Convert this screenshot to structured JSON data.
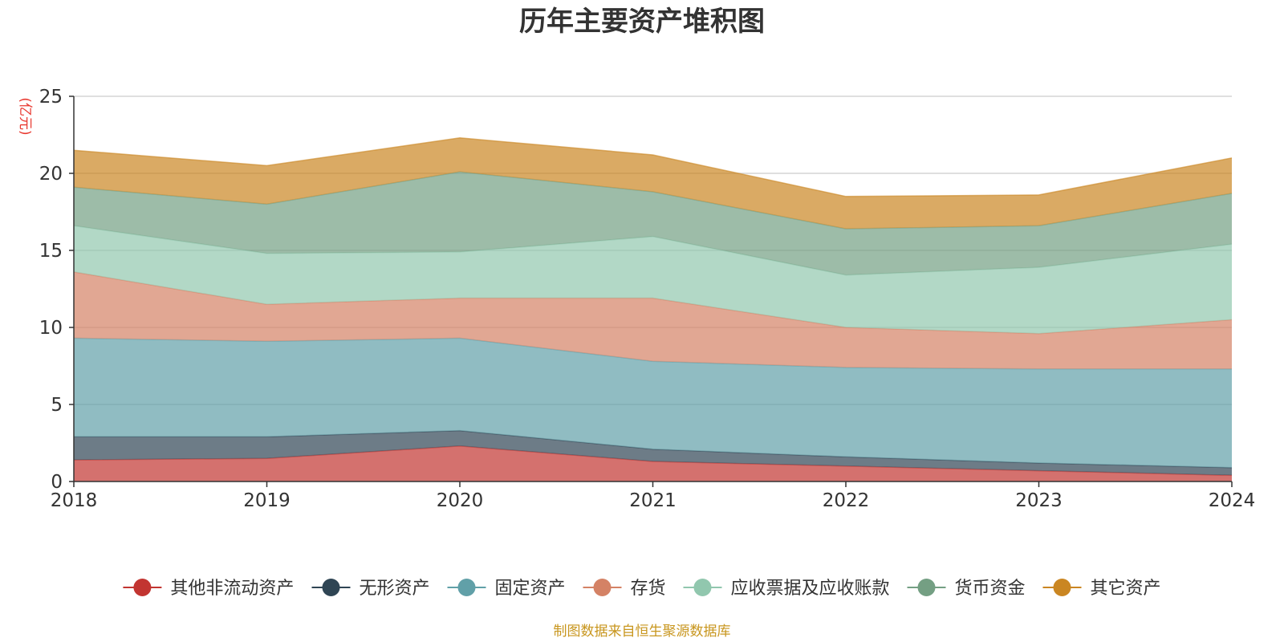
{
  "chart_data": {
    "type": "area",
    "title": "历年主要资产堆积图",
    "ylabel": "(亿元)",
    "x": [
      "2018",
      "2019",
      "2020",
      "2021",
      "2022",
      "2023",
      "2024"
    ],
    "ylim": [
      0,
      25
    ],
    "yticks": [
      "0",
      "5",
      "10",
      "15",
      "20",
      "25"
    ],
    "stacked": true,
    "grid": true,
    "legend_position": "bottom",
    "series": [
      {
        "name": "其他非流动资产",
        "color": "#c23531",
        "values": [
          1.4,
          1.5,
          2.3,
          1.3,
          1.0,
          0.7,
          0.4
        ]
      },
      {
        "name": "无形资产",
        "color": "#2f4554",
        "values": [
          1.5,
          1.4,
          1.0,
          0.8,
          0.6,
          0.5,
          0.5
        ]
      },
      {
        "name": "固定资产",
        "color": "#61a0a8",
        "values": [
          6.4,
          6.2,
          6.0,
          5.7,
          5.8,
          6.1,
          6.4
        ]
      },
      {
        "name": "存货",
        "color": "#d48265",
        "values": [
          4.3,
          2.4,
          2.6,
          4.1,
          2.6,
          2.3,
          3.2
        ]
      },
      {
        "name": "应收票据及应收账款",
        "color": "#91c7ae",
        "values": [
          3.0,
          3.3,
          3.0,
          4.0,
          3.4,
          4.3,
          4.9
        ]
      },
      {
        "name": "货币资金",
        "color": "#749f83",
        "values": [
          2.5,
          3.2,
          5.2,
          2.9,
          3.0,
          2.7,
          3.3
        ]
      },
      {
        "name": "其它资产",
        "color": "#ca8622",
        "values": [
          2.4,
          2.5,
          2.2,
          2.4,
          2.1,
          2.0,
          2.3
        ]
      }
    ]
  },
  "footer": {
    "source": "制图数据来自恒生聚源数据库"
  }
}
